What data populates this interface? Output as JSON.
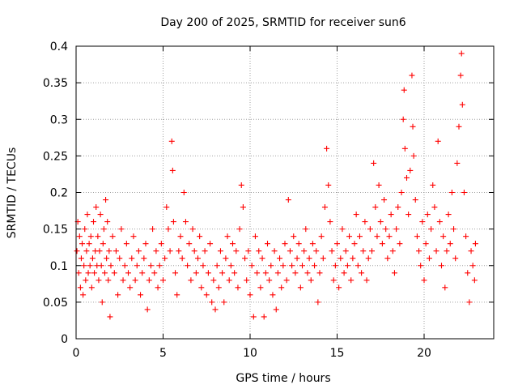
{
  "chart_data": {
    "type": "scatter",
    "title": "Day 200 of 2025, SRMTID for receiver sun6",
    "xlabel": "GPS time / hours",
    "ylabel": "SRMTID / TECUs",
    "xlim": [
      0,
      24
    ],
    "ylim": [
      0,
      0.4
    ],
    "grid": true,
    "marker": "+",
    "marker_color": "#ff0000",
    "x_ticks": [
      0,
      5,
      10,
      15,
      20
    ],
    "x_tick_labels": [
      "0",
      "5",
      "10",
      "15",
      "20"
    ],
    "y_ticks": [
      0,
      0.05,
      0.1,
      0.15,
      0.2,
      0.25,
      0.3,
      0.35,
      0.4
    ],
    "y_tick_labels": [
      "0",
      "0.05",
      "0.1",
      "0.15",
      "0.2",
      "0.25",
      "0.3",
      "0.35",
      "0.4"
    ],
    "series": [
      {
        "name": "sun6",
        "points": [
          [
            0.05,
            0.12
          ],
          [
            0.1,
            0.16
          ],
          [
            0.15,
            0.09
          ],
          [
            0.2,
            0.14
          ],
          [
            0.25,
            0.07
          ],
          [
            0.3,
            0.11
          ],
          [
            0.35,
            0.13
          ],
          [
            0.4,
            0.06
          ],
          [
            0.45,
            0.1
          ],
          [
            0.5,
            0.15
          ],
          [
            0.55,
            0.08
          ],
          [
            0.6,
            0.12
          ],
          [
            0.65,
            0.17
          ],
          [
            0.7,
            0.09
          ],
          [
            0.75,
            0.13
          ],
          [
            0.8,
            0.1
          ],
          [
            0.85,
            0.14
          ],
          [
            0.9,
            0.07
          ],
          [
            0.95,
            0.11
          ],
          [
            1.0,
            0.16
          ],
          [
            1.05,
            0.09
          ],
          [
            1.1,
            0.12
          ],
          [
            1.15,
            0.18
          ],
          [
            1.2,
            0.1
          ],
          [
            1.25,
            0.14
          ],
          [
            1.3,
            0.08
          ],
          [
            1.35,
            0.12
          ],
          [
            1.4,
            0.17
          ],
          [
            1.45,
            0.1
          ],
          [
            1.5,
            0.05
          ],
          [
            1.55,
            0.13
          ],
          [
            1.6,
            0.15
          ],
          [
            1.65,
            0.09
          ],
          [
            1.7,
            0.19
          ],
          [
            1.75,
            0.11
          ],
          [
            1.8,
            0.16
          ],
          [
            1.85,
            0.08
          ],
          [
            1.9,
            0.12
          ],
          [
            1.95,
            0.03
          ],
          [
            2.0,
            0.1
          ],
          [
            2.1,
            0.14
          ],
          [
            2.2,
            0.09
          ],
          [
            2.3,
            0.12
          ],
          [
            2.4,
            0.06
          ],
          [
            2.5,
            0.11
          ],
          [
            2.6,
            0.15
          ],
          [
            2.7,
            0.08
          ],
          [
            2.8,
            0.1
          ],
          [
            2.9,
            0.13
          ],
          [
            3.0,
            0.09
          ],
          [
            3.1,
            0.07
          ],
          [
            3.2,
            0.11
          ],
          [
            3.3,
            0.14
          ],
          [
            3.4,
            0.08
          ],
          [
            3.5,
            0.1
          ],
          [
            3.6,
            0.12
          ],
          [
            3.7,
            0.06
          ],
          [
            3.8,
            0.09
          ],
          [
            3.9,
            0.11
          ],
          [
            4.0,
            0.13
          ],
          [
            4.1,
            0.04
          ],
          [
            4.2,
            0.08
          ],
          [
            4.3,
            0.1
          ],
          [
            4.4,
            0.15
          ],
          [
            4.5,
            0.09
          ],
          [
            4.6,
            0.12
          ],
          [
            4.7,
            0.07
          ],
          [
            4.8,
            0.1
          ],
          [
            4.9,
            0.13
          ],
          [
            5.0,
            0.08
          ],
          [
            5.1,
            0.11
          ],
          [
            5.2,
            0.18
          ],
          [
            5.3,
            0.15
          ],
          [
            5.4,
            0.12
          ],
          [
            5.5,
            0.27
          ],
          [
            5.55,
            0.23
          ],
          [
            5.6,
            0.16
          ],
          [
            5.7,
            0.09
          ],
          [
            5.8,
            0.06
          ],
          [
            5.9,
            0.12
          ],
          [
            6.0,
            0.14
          ],
          [
            6.1,
            0.11
          ],
          [
            6.2,
            0.2
          ],
          [
            6.3,
            0.16
          ],
          [
            6.4,
            0.1
          ],
          [
            6.5,
            0.13
          ],
          [
            6.6,
            0.08
          ],
          [
            6.7,
            0.15
          ],
          [
            6.8,
            0.12
          ],
          [
            6.9,
            0.09
          ],
          [
            7.0,
            0.11
          ],
          [
            7.1,
            0.14
          ],
          [
            7.2,
            0.07
          ],
          [
            7.3,
            0.1
          ],
          [
            7.4,
            0.12
          ],
          [
            7.5,
            0.06
          ],
          [
            7.6,
            0.09
          ],
          [
            7.7,
            0.13
          ],
          [
            7.8,
            0.05
          ],
          [
            7.9,
            0.08
          ],
          [
            8.0,
            0.04
          ],
          [
            8.1,
            0.1
          ],
          [
            8.2,
            0.07
          ],
          [
            8.3,
            0.12
          ],
          [
            8.4,
            0.09
          ],
          [
            8.5,
            0.05
          ],
          [
            8.6,
            0.11
          ],
          [
            8.7,
            0.14
          ],
          [
            8.8,
            0.08
          ],
          [
            8.9,
            0.1
          ],
          [
            9.0,
            0.13
          ],
          [
            9.1,
            0.09
          ],
          [
            9.2,
            0.12
          ],
          [
            9.3,
            0.07
          ],
          [
            9.4,
            0.15
          ],
          [
            9.5,
            0.21
          ],
          [
            9.6,
            0.18
          ],
          [
            9.7,
            0.11
          ],
          [
            9.8,
            0.08
          ],
          [
            9.9,
            0.12
          ],
          [
            10.0,
            0.06
          ],
          [
            10.1,
            0.1
          ],
          [
            10.2,
            0.03
          ],
          [
            10.3,
            0.14
          ],
          [
            10.4,
            0.09
          ],
          [
            10.5,
            0.12
          ],
          [
            10.6,
            0.07
          ],
          [
            10.7,
            0.11
          ],
          [
            10.8,
            0.03
          ],
          [
            10.9,
            0.09
          ],
          [
            11.0,
            0.13
          ],
          [
            11.1,
            0.08
          ],
          [
            11.2,
            0.1
          ],
          [
            11.3,
            0.06
          ],
          [
            11.4,
            0.12
          ],
          [
            11.5,
            0.04
          ],
          [
            11.6,
            0.09
          ],
          [
            11.7,
            0.11
          ],
          [
            11.8,
            0.07
          ],
          [
            11.9,
            0.1
          ],
          [
            12.0,
            0.13
          ],
          [
            12.1,
            0.08
          ],
          [
            12.2,
            0.19
          ],
          [
            12.3,
            0.12
          ],
          [
            12.4,
            0.1
          ],
          [
            12.5,
            0.14
          ],
          [
            12.6,
            0.09
          ],
          [
            12.7,
            0.11
          ],
          [
            12.8,
            0.13
          ],
          [
            12.9,
            0.07
          ],
          [
            13.0,
            0.1
          ],
          [
            13.1,
            0.12
          ],
          [
            13.2,
            0.15
          ],
          [
            13.3,
            0.09
          ],
          [
            13.4,
            0.11
          ],
          [
            13.5,
            0.08
          ],
          [
            13.6,
            0.13
          ],
          [
            13.7,
            0.1
          ],
          [
            13.8,
            0.12
          ],
          [
            13.9,
            0.05
          ],
          [
            14.0,
            0.09
          ],
          [
            14.1,
            0.14
          ],
          [
            14.2,
            0.11
          ],
          [
            14.3,
            0.18
          ],
          [
            14.4,
            0.26
          ],
          [
            14.5,
            0.21
          ],
          [
            14.6,
            0.16
          ],
          [
            14.7,
            0.12
          ],
          [
            14.8,
            0.08
          ],
          [
            14.9,
            0.1
          ],
          [
            15.0,
            0.13
          ],
          [
            15.1,
            0.07
          ],
          [
            15.2,
            0.11
          ],
          [
            15.3,
            0.15
          ],
          [
            15.4,
            0.09
          ],
          [
            15.5,
            0.12
          ],
          [
            15.6,
            0.1
          ],
          [
            15.7,
            0.14
          ],
          [
            15.8,
            0.08
          ],
          [
            15.9,
            0.11
          ],
          [
            16.0,
            0.13
          ],
          [
            16.1,
            0.17
          ],
          [
            16.2,
            0.1
          ],
          [
            16.3,
            0.14
          ],
          [
            16.4,
            0.09
          ],
          [
            16.5,
            0.12
          ],
          [
            16.6,
            0.16
          ],
          [
            16.7,
            0.08
          ],
          [
            16.8,
            0.11
          ],
          [
            16.9,
            0.15
          ],
          [
            17.0,
            0.12
          ],
          [
            17.1,
            0.24
          ],
          [
            17.2,
            0.18
          ],
          [
            17.3,
            0.14
          ],
          [
            17.4,
            0.21
          ],
          [
            17.5,
            0.16
          ],
          [
            17.6,
            0.13
          ],
          [
            17.7,
            0.19
          ],
          [
            17.8,
            0.15
          ],
          [
            17.9,
            0.11
          ],
          [
            18.0,
            0.14
          ],
          [
            18.1,
            0.17
          ],
          [
            18.2,
            0.12
          ],
          [
            18.3,
            0.09
          ],
          [
            18.4,
            0.15
          ],
          [
            18.5,
            0.18
          ],
          [
            18.6,
            0.13
          ],
          [
            18.7,
            0.2
          ],
          [
            18.8,
            0.3
          ],
          [
            18.85,
            0.34
          ],
          [
            18.9,
            0.26
          ],
          [
            19.0,
            0.22
          ],
          [
            19.1,
            0.17
          ],
          [
            19.2,
            0.23
          ],
          [
            19.3,
            0.36
          ],
          [
            19.35,
            0.29
          ],
          [
            19.4,
            0.25
          ],
          [
            19.5,
            0.19
          ],
          [
            19.6,
            0.14
          ],
          [
            19.7,
            0.12
          ],
          [
            19.8,
            0.1
          ],
          [
            19.9,
            0.16
          ],
          [
            20.0,
            0.08
          ],
          [
            20.1,
            0.13
          ],
          [
            20.2,
            0.17
          ],
          [
            20.3,
            0.11
          ],
          [
            20.4,
            0.15
          ],
          [
            20.5,
            0.21
          ],
          [
            20.6,
            0.18
          ],
          [
            20.7,
            0.12
          ],
          [
            20.8,
            0.27
          ],
          [
            20.9,
            0.16
          ],
          [
            21.0,
            0.1
          ],
          [
            21.1,
            0.14
          ],
          [
            21.2,
            0.07
          ],
          [
            21.3,
            0.12
          ],
          [
            21.4,
            0.17
          ],
          [
            21.5,
            0.13
          ],
          [
            21.6,
            0.2
          ],
          [
            21.7,
            0.15
          ],
          [
            21.8,
            0.11
          ],
          [
            21.9,
            0.24
          ],
          [
            22.0,
            0.29
          ],
          [
            22.1,
            0.36
          ],
          [
            22.15,
            0.39
          ],
          [
            22.2,
            0.32
          ],
          [
            22.3,
            0.2
          ],
          [
            22.4,
            0.14
          ],
          [
            22.5,
            0.09
          ],
          [
            22.6,
            0.05
          ],
          [
            22.7,
            0.12
          ],
          [
            22.8,
            0.1
          ],
          [
            22.9,
            0.08
          ],
          [
            22.95,
            0.13
          ]
        ]
      }
    ]
  }
}
